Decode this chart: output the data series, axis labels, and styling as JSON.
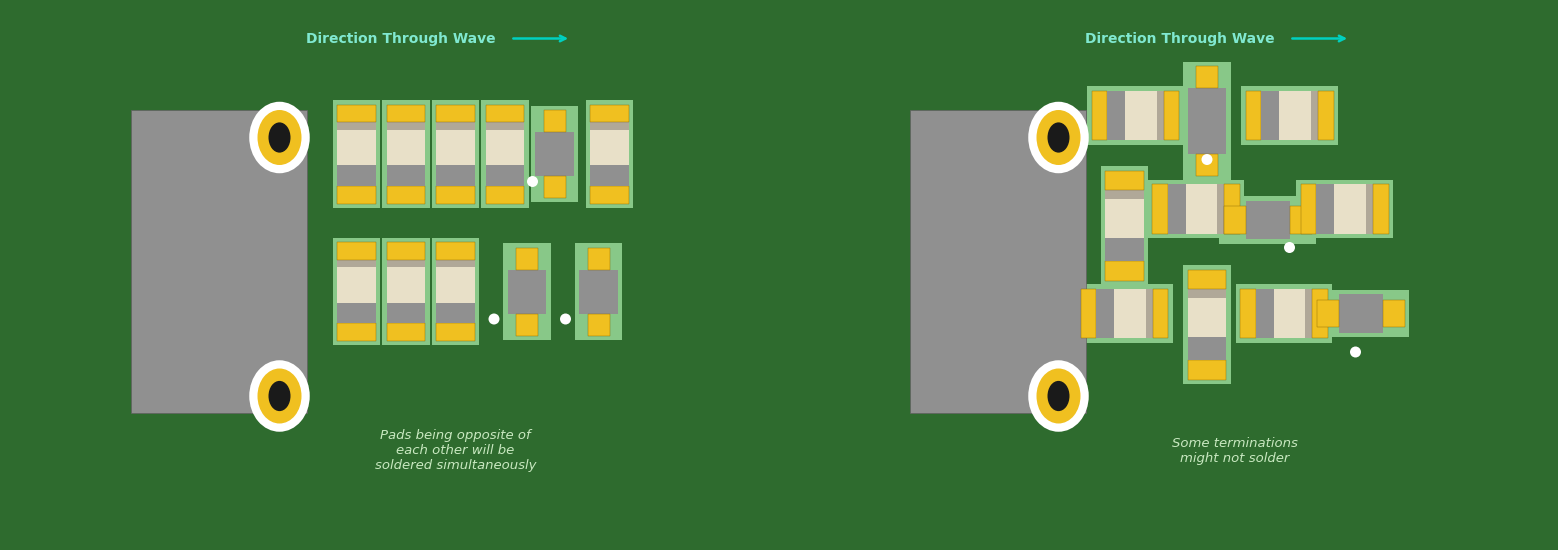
{
  "bg_color": "#2e6b2e",
  "pad_color": "#f0c020",
  "pad_dark": "#8a6800",
  "body_light": "#e8e0c8",
  "body_mid": "#b0a898",
  "body_dark": "#909090",
  "outline_color": "#88c888",
  "arrow_color": "#00d0c0",
  "text_color": "#80e8d0",
  "caption_color": "#c8e8c0",
  "connector_white": "#ffffff",
  "connector_yellow": "#f0c020",
  "connector_dark": "#1a1a1a",
  "board_gray": "#909090",
  "panel1_caption": "Pads being opposite of\neach other will be\nsoldered simultaneously",
  "panel2_caption": "Some terminations\nmight not solder"
}
